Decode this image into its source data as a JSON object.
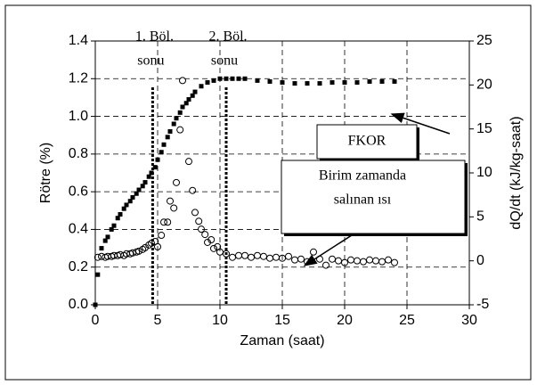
{
  "chart_data": {
    "type": "scatter",
    "xlabel": "Zaman (saat)",
    "ylabel": "Rötre (%)",
    "y2label": "dQ/dt (kJ/kg-saat)",
    "xlim": [
      0,
      30
    ],
    "xticks": [
      0,
      5,
      10,
      15,
      20,
      25,
      30
    ],
    "ylim": [
      0,
      1.4
    ],
    "yticks": [
      {
        "value": 0,
        "label": "0.0"
      },
      {
        "value": 0.2,
        "label": "0.2"
      },
      {
        "value": 0.4,
        "label": "0.4"
      },
      {
        "value": 0.6,
        "label": "0.6"
      },
      {
        "value": 0.8,
        "label": "0.8"
      },
      {
        "value": 1,
        "label": "1.0"
      },
      {
        "value": 1.2,
        "label": "1.2"
      },
      {
        "value": 1.4,
        "label": "1.4"
      }
    ],
    "y2lim": [
      -5,
      25
    ],
    "y2ticks": [
      -5,
      0,
      5,
      10,
      15,
      20,
      25
    ],
    "grid": true,
    "series": [
      {
        "name": "FKOR",
        "color": "#000000",
        "marker": "square",
        "x": [
          0,
          0.2,
          0.5,
          0.8,
          1,
          1.3,
          1.5,
          1.8,
          2,
          2.3,
          2.5,
          2.8,
          3,
          3.3,
          3.5,
          3.8,
          4,
          4.3,
          4.5,
          4.8,
          5,
          5.3,
          5.5,
          5.8,
          6,
          6.3,
          6.5,
          6.8,
          7,
          7.3,
          7.5,
          7.8,
          8,
          8.5,
          9,
          9.5,
          10,
          10.5,
          11,
          11.5,
          12,
          13,
          14,
          15,
          16,
          17,
          18,
          19,
          20,
          21,
          22,
          23,
          24
        ],
        "values": [
          0,
          0.16,
          0.3,
          0.34,
          0.36,
          0.4,
          0.42,
          0.46,
          0.48,
          0.51,
          0.53,
          0.55,
          0.57,
          0.59,
          0.61,
          0.63,
          0.65,
          0.68,
          0.7,
          0.73,
          0.77,
          0.81,
          0.85,
          0.89,
          0.92,
          0.96,
          0.99,
          1.02,
          1.05,
          1.07,
          1.09,
          1.11,
          1.13,
          1.16,
          1.18,
          1.19,
          1.2,
          1.2,
          1.2,
          1.2,
          1.2,
          1.19,
          1.185,
          1.18,
          1.175,
          1.175,
          1.175,
          1.18,
          1.18,
          1.18,
          1.185,
          1.185,
          1.185
        ]
      },
      {
        "name": "Birim zamanda salınan ısı",
        "color": "#000000",
        "marker": "circle",
        "axis": "y2",
        "x": [
          0.2,
          0.5,
          0.8,
          1,
          1.3,
          1.5,
          1.8,
          2,
          2.3,
          2.5,
          2.8,
          3,
          3.3,
          3.5,
          3.8,
          4,
          4.3,
          4.5,
          4.8,
          5,
          5.3,
          5.5,
          5.8,
          6,
          6.3,
          6.5,
          6.8,
          7,
          7.5,
          7.8,
          8,
          8.3,
          8.5,
          8.8,
          9,
          9.3,
          9.5,
          9.8,
          10,
          10.5,
          11,
          11.5,
          12,
          12.5,
          13,
          13.5,
          14,
          14.5,
          15,
          15.5,
          16,
          16.5,
          17,
          17.5,
          18,
          18.5,
          19,
          19.5,
          20,
          20.5,
          21,
          21.5,
          22,
          22.5,
          23,
          23.5,
          24
        ],
        "values": [
          0.4,
          0.5,
          0.4,
          0.5,
          0.5,
          0.6,
          0.6,
          0.7,
          0.6,
          0.8,
          0.8,
          0.9,
          1,
          1.1,
          1.3,
          1.5,
          1.8,
          2,
          2.2,
          1.6,
          2.9,
          4.4,
          4.4,
          6.8,
          6,
          8.9,
          14.9,
          20.5,
          11.3,
          8,
          5.5,
          4.5,
          3.6,
          3,
          2.1,
          2.4,
          1.4,
          1.6,
          1,
          0.8,
          0.4,
          0.6,
          0.6,
          0.4,
          0.6,
          0.5,
          0.3,
          0.4,
          0.3,
          0.5,
          0.1,
          0.2,
          -0.1,
          1,
          0.2,
          -0.5,
          0.2,
          0,
          -0.2,
          0.1,
          0,
          -0.1,
          0.1,
          0,
          -0.1,
          0.1,
          -0.2
        ]
      }
    ],
    "vlines": [
      4.6,
      10.5
    ],
    "annotations": [
      [
        "1. Böl.",
        "sonu"
      ],
      [
        "2. Böl.",
        "sonu"
      ]
    ],
    "callouts": [
      [
        "FKOR"
      ],
      [
        "Birim zamanda",
        "salınan ısı"
      ]
    ]
  }
}
